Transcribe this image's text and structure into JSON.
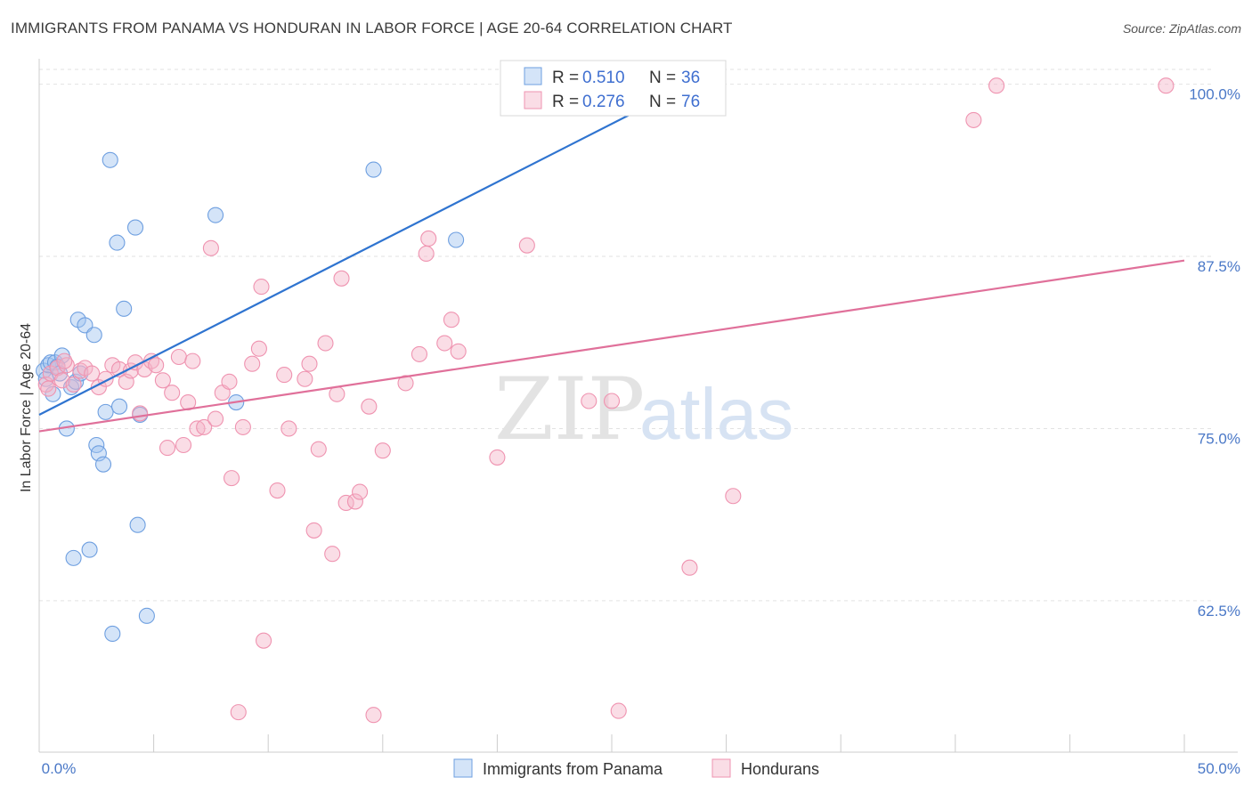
{
  "header": {
    "title": "IMMIGRANTS FROM PANAMA VS HONDURAN IN LABOR FORCE | AGE 20-64 CORRELATION CHART",
    "source": "Source: ZipAtlas.com"
  },
  "watermark": {
    "zip": "ZIP",
    "atlas": "atlas"
  },
  "chart_data": {
    "type": "scatter",
    "ylabel": "In Labor Force | Age 20-64",
    "xlim": [
      0,
      50
    ],
    "ylim": [
      51.5,
      102.5
    ],
    "x_ticks": [
      {
        "value": 0,
        "label": "0.0%"
      },
      {
        "value": 50,
        "label": "50.0%"
      }
    ],
    "y_ticks": [
      {
        "value": 62.5,
        "label": "62.5%"
      },
      {
        "value": 75.0,
        "label": "75.0%"
      },
      {
        "value": 87.5,
        "label": "87.5%"
      },
      {
        "value": 100.0,
        "label": "100.0%"
      }
    ],
    "grid": true,
    "legend_top": [
      {
        "r_label": "R = ",
        "r_value": "0.510",
        "n_label": "N = ",
        "n_value": "36",
        "color": "#6e9fe0"
      },
      {
        "r_label": "R = ",
        "r_value": "0.276",
        "n_label": "N = ",
        "n_value": "76",
        "color": "#ef93b0"
      }
    ],
    "series": [
      {
        "name": "Immigrants from Panama",
        "color": "#6e9fe0",
        "fill": "rgba(160,195,240,0.45)",
        "trend": {
          "x": [
            0,
            28.4
          ],
          "y": [
            76.0,
            100.0
          ],
          "color": "#2f74d0"
        },
        "points": [
          [
            0.2,
            79.2
          ],
          [
            0.3,
            78.6
          ],
          [
            0.4,
            79.6
          ],
          [
            0.5,
            79.8
          ],
          [
            0.6,
            77.5
          ],
          [
            0.7,
            79.8
          ],
          [
            0.8,
            79.5
          ],
          [
            0.9,
            79.0
          ],
          [
            1.0,
            80.3
          ],
          [
            1.2,
            75.0
          ],
          [
            1.4,
            78.0
          ],
          [
            1.5,
            65.6
          ],
          [
            1.6,
            78.4
          ],
          [
            1.7,
            82.9
          ],
          [
            1.8,
            79.0
          ],
          [
            2.0,
            82.5
          ],
          [
            2.2,
            66.2
          ],
          [
            2.4,
            81.8
          ],
          [
            2.5,
            73.8
          ],
          [
            2.6,
            73.2
          ],
          [
            2.8,
            72.4
          ],
          [
            2.9,
            76.2
          ],
          [
            3.1,
            94.5
          ],
          [
            3.2,
            60.1
          ],
          [
            3.4,
            88.5
          ],
          [
            3.5,
            76.6
          ],
          [
            3.7,
            83.7
          ],
          [
            4.2,
            89.6
          ],
          [
            4.3,
            68.0
          ],
          [
            4.4,
            76.0
          ],
          [
            4.7,
            61.4
          ],
          [
            7.7,
            90.5
          ],
          [
            8.6,
            76.9
          ],
          [
            14.6,
            93.8
          ],
          [
            18.2,
            88.7
          ],
          [
            27.0,
            100.1
          ]
        ]
      },
      {
        "name": "Hondurans",
        "color": "#ef93b0",
        "fill": "rgba(245,180,200,0.45)",
        "trend": {
          "x": [
            0,
            50
          ],
          "y": [
            74.8,
            87.2
          ],
          "color": "#e0709a"
        },
        "points": [
          [
            0.3,
            78.2
          ],
          [
            0.5,
            79.0
          ],
          [
            0.8,
            79.4
          ],
          [
            1.0,
            78.5
          ],
          [
            1.2,
            79.6
          ],
          [
            1.5,
            78.2
          ],
          [
            1.8,
            79.2
          ],
          [
            2.0,
            79.4
          ],
          [
            2.3,
            79.0
          ],
          [
            2.6,
            78.0
          ],
          [
            2.9,
            78.6
          ],
          [
            3.2,
            79.6
          ],
          [
            3.5,
            79.3
          ],
          [
            3.8,
            78.4
          ],
          [
            4.0,
            79.2
          ],
          [
            4.2,
            79.8
          ],
          [
            4.4,
            76.1
          ],
          [
            4.6,
            79.3
          ],
          [
            4.9,
            79.9
          ],
          [
            5.1,
            79.6
          ],
          [
            5.4,
            78.5
          ],
          [
            5.6,
            73.6
          ],
          [
            5.8,
            77.6
          ],
          [
            6.1,
            80.2
          ],
          [
            6.3,
            73.8
          ],
          [
            6.5,
            76.9
          ],
          [
            6.7,
            79.9
          ],
          [
            6.9,
            75.0
          ],
          [
            7.2,
            75.1
          ],
          [
            7.5,
            88.1
          ],
          [
            7.7,
            75.7
          ],
          [
            8.0,
            77.6
          ],
          [
            8.3,
            78.4
          ],
          [
            8.4,
            71.4
          ],
          [
            8.7,
            54.4
          ],
          [
            8.9,
            75.1
          ],
          [
            9.3,
            79.7
          ],
          [
            9.6,
            80.8
          ],
          [
            9.7,
            85.3
          ],
          [
            9.8,
            59.6
          ],
          [
            10.4,
            70.5
          ],
          [
            10.7,
            78.9
          ],
          [
            10.9,
            75.0
          ],
          [
            11.6,
            78.6
          ],
          [
            11.8,
            79.7
          ],
          [
            12.0,
            67.6
          ],
          [
            12.2,
            73.5
          ],
          [
            12.5,
            81.2
          ],
          [
            12.8,
            65.9
          ],
          [
            13.0,
            77.5
          ],
          [
            13.2,
            85.9
          ],
          [
            13.4,
            69.6
          ],
          [
            13.8,
            69.7
          ],
          [
            14.0,
            70.4
          ],
          [
            14.4,
            76.6
          ],
          [
            14.6,
            54.2
          ],
          [
            15.0,
            73.4
          ],
          [
            16.0,
            78.3
          ],
          [
            16.6,
            80.4
          ],
          [
            16.9,
            87.7
          ],
          [
            17.0,
            88.8
          ],
          [
            17.7,
            81.2
          ],
          [
            18.0,
            82.9
          ],
          [
            18.3,
            80.6
          ],
          [
            20.0,
            72.9
          ],
          [
            21.3,
            88.3
          ],
          [
            24.0,
            77.0
          ],
          [
            25.0,
            77.0
          ],
          [
            25.3,
            54.5
          ],
          [
            28.4,
            64.9
          ],
          [
            30.3,
            70.1
          ],
          [
            40.8,
            97.4
          ],
          [
            41.8,
            99.9
          ],
          [
            49.2,
            99.9
          ],
          [
            0.4,
            77.9
          ],
          [
            1.1,
            79.9
          ]
        ]
      }
    ]
  }
}
